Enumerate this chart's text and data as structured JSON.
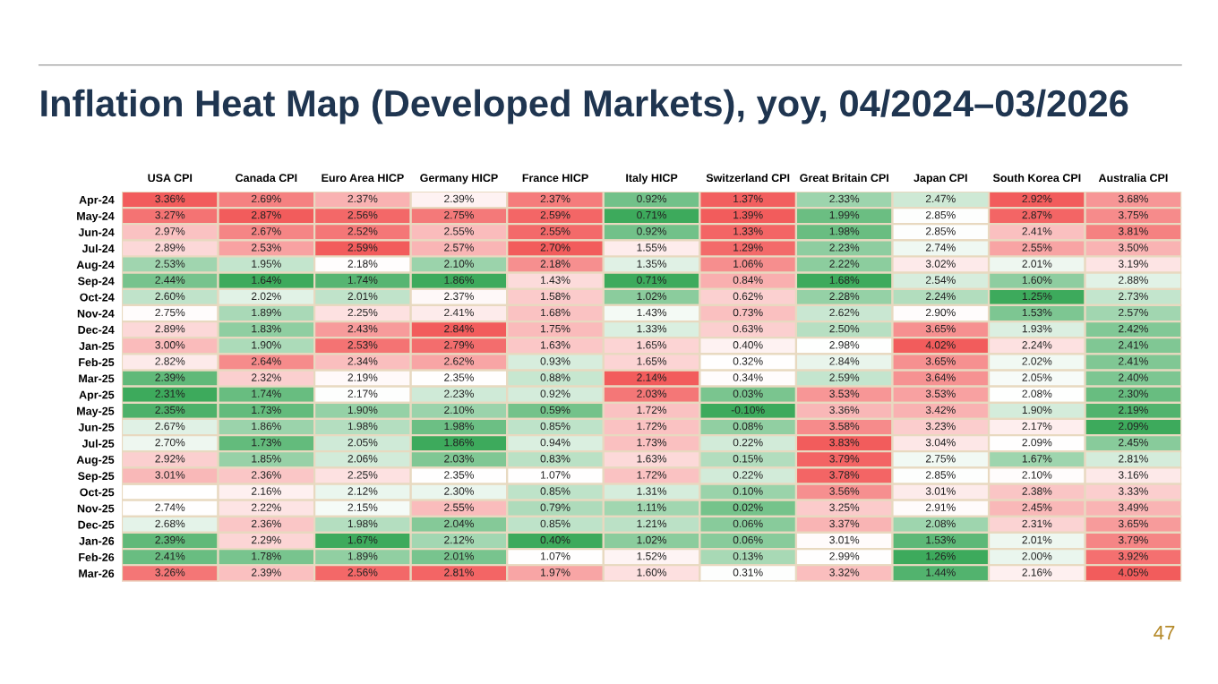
{
  "chart_data": {
    "type": "heatmap",
    "title": "Inflation Heat Map (Developed Markets), yoy, 04/2024–03/2026",
    "categories": [
      "USA CPI",
      "Canada CPI",
      "Euro Area HICP",
      "Germany HICP",
      "France HICP",
      "Italy HICP",
      "Switzerland CPI",
      "Great Britain CPI",
      "Japan CPI",
      "South Korea CPI",
      "Australia CPI"
    ],
    "y_categories": [
      "Apr-24",
      "May-24",
      "Jun-24",
      "Jul-24",
      "Aug-24",
      "Sep-24",
      "Oct-24",
      "Nov-24",
      "Dec-24",
      "Jan-25",
      "Feb-25",
      "Mar-25",
      "Apr-25",
      "May-25",
      "Jun-25",
      "Jul-25",
      "Aug-25",
      "Sep-25",
      "Oct-25",
      "Nov-25",
      "Dec-25",
      "Jan-26",
      "Feb-26",
      "Mar-26"
    ],
    "cells": [
      [
        3.36,
        2.69,
        2.37,
        2.39,
        2.37,
        0.92,
        1.37,
        2.33,
        2.47,
        2.92,
        3.68
      ],
      [
        3.27,
        2.87,
        2.56,
        2.75,
        2.59,
        0.71,
        1.39,
        1.99,
        2.85,
        2.87,
        3.75
      ],
      [
        2.97,
        2.67,
        2.52,
        2.55,
        2.55,
        0.92,
        1.33,
        1.98,
        2.85,
        2.41,
        3.81
      ],
      [
        2.89,
        2.53,
        2.59,
        2.57,
        2.7,
        1.55,
        1.29,
        2.23,
        2.74,
        2.55,
        3.5
      ],
      [
        2.53,
        1.95,
        2.18,
        2.1,
        2.18,
        1.35,
        1.06,
        2.22,
        3.02,
        2.01,
        3.19
      ],
      [
        2.44,
        1.64,
        1.74,
        1.86,
        1.43,
        0.71,
        0.84,
        1.68,
        2.54,
        1.6,
        2.88
      ],
      [
        2.6,
        2.02,
        2.01,
        2.37,
        1.58,
        1.02,
        0.62,
        2.28,
        2.24,
        1.25,
        2.73
      ],
      [
        2.75,
        1.89,
        2.25,
        2.41,
        1.68,
        1.43,
        0.73,
        2.62,
        2.9,
        1.53,
        2.57
      ],
      [
        2.89,
        1.83,
        2.43,
        2.84,
        1.75,
        1.33,
        0.63,
        2.5,
        3.65,
        1.93,
        2.42
      ],
      [
        3.0,
        1.9,
        2.53,
        2.79,
        1.63,
        1.65,
        0.4,
        2.98,
        4.02,
        2.24,
        2.41
      ],
      [
        2.82,
        2.64,
        2.34,
        2.62,
        0.93,
        1.65,
        0.32,
        2.84,
        3.65,
        2.02,
        2.41
      ],
      [
        2.39,
        2.32,
        2.19,
        2.35,
        0.88,
        2.14,
        0.34,
        2.59,
        3.64,
        2.05,
        2.4
      ],
      [
        2.31,
        1.74,
        2.17,
        2.23,
        0.92,
        2.03,
        0.03,
        3.53,
        3.53,
        2.08,
        2.3
      ],
      [
        2.35,
        1.73,
        1.9,
        2.1,
        0.59,
        1.72,
        -0.1,
        3.36,
        3.42,
        1.9,
        2.19
      ],
      [
        2.67,
        1.86,
        1.98,
        1.98,
        0.85,
        1.72,
        0.08,
        3.58,
        3.23,
        2.17,
        2.09
      ],
      [
        2.7,
        1.73,
        2.05,
        1.86,
        0.94,
        1.73,
        0.22,
        3.83,
        3.04,
        2.09,
        2.45
      ],
      [
        2.92,
        1.85,
        2.06,
        2.03,
        0.83,
        1.63,
        0.15,
        3.79,
        2.75,
        1.67,
        2.81
      ],
      [
        3.01,
        2.36,
        2.25,
        2.35,
        1.07,
        1.72,
        0.22,
        3.78,
        2.85,
        2.1,
        3.16
      ],
      [
        null,
        2.16,
        2.12,
        2.3,
        0.85,
        1.31,
        0.1,
        3.56,
        3.01,
        2.38,
        3.33
      ],
      [
        2.74,
        2.22,
        2.15,
        2.55,
        0.79,
        1.11,
        0.02,
        3.25,
        2.91,
        2.45,
        3.49
      ],
      [
        2.68,
        2.36,
        1.98,
        2.04,
        0.85,
        1.21,
        0.06,
        3.37,
        2.08,
        2.31,
        3.65
      ],
      [
        2.39,
        2.29,
        1.67,
        2.12,
        0.4,
        1.02,
        0.06,
        3.01,
        1.53,
        2.01,
        3.79
      ],
      [
        2.41,
        1.78,
        1.89,
        2.01,
        1.07,
        1.52,
        0.13,
        2.99,
        1.26,
        2.0,
        3.92
      ],
      [
        3.26,
        2.39,
        2.56,
        2.81,
        1.97,
        1.6,
        0.31,
        3.32,
        1.44,
        2.16,
        4.05
      ]
    ],
    "cell_labels": [
      [
        "3.36%",
        "2.69%",
        "2.37%",
        "2.39%",
        "2.37%",
        "0.92%",
        "1.37%",
        "2.33%",
        "2.47%",
        "2.92%",
        "3.68%"
      ],
      [
        "3.27%",
        "2.87%",
        "2.56%",
        "2.75%",
        "2.59%",
        "0.71%",
        "1.39%",
        "1.99%",
        "2.85%",
        "2.87%",
        "3.75%"
      ],
      [
        "2.97%",
        "2.67%",
        "2.52%",
        "2.55%",
        "2.55%",
        "0.92%",
        "1.33%",
        "1.98%",
        "2.85%",
        "2.41%",
        "3.81%"
      ],
      [
        "2.89%",
        "2.53%",
        "2.59%",
        "2.57%",
        "2.70%",
        "1.55%",
        "1.29%",
        "2.23%",
        "2.74%",
        "2.55%",
        "3.50%"
      ],
      [
        "2.53%",
        "1.95%",
        "2.18%",
        "2.10%",
        "2.18%",
        "1.35%",
        "1.06%",
        "2.22%",
        "3.02%",
        "2.01%",
        "3.19%"
      ],
      [
        "2.44%",
        "1.64%",
        "1.74%",
        "1.86%",
        "1.43%",
        "0.71%",
        "0.84%",
        "1.68%",
        "2.54%",
        "1.60%",
        "2.88%"
      ],
      [
        "2.60%",
        "2.02%",
        "2.01%",
        "2.37%",
        "1.58%",
        "1.02%",
        "0.62%",
        "2.28%",
        "2.24%",
        "1.25%",
        "2.73%"
      ],
      [
        "2.75%",
        "1.89%",
        "2.25%",
        "2.41%",
        "1.68%",
        "1.43%",
        "0.73%",
        "2.62%",
        "2.90%",
        "1.53%",
        "2.57%"
      ],
      [
        "2.89%",
        "1.83%",
        "2.43%",
        "2.84%",
        "1.75%",
        "1.33%",
        "0.63%",
        "2.50%",
        "3.65%",
        "1.93%",
        "2.42%"
      ],
      [
        "3.00%",
        "1.90%",
        "2.53%",
        "2.79%",
        "1.63%",
        "1.65%",
        "0.40%",
        "2.98%",
        "4.02%",
        "2.24%",
        "2.41%"
      ],
      [
        "2.82%",
        "2.64%",
        "2.34%",
        "2.62%",
        "0.93%",
        "1.65%",
        "0.32%",
        "2.84%",
        "3.65%",
        "2.02%",
        "2.41%"
      ],
      [
        "2.39%",
        "2.32%",
        "2.19%",
        "2.35%",
        "0.88%",
        "2.14%",
        "0.34%",
        "2.59%",
        "3.64%",
        "2.05%",
        "2.40%"
      ],
      [
        "2.31%",
        "1.74%",
        "2.17%",
        "2.23%",
        "0.92%",
        "2.03%",
        "0.03%",
        "3.53%",
        "3.53%",
        "2.08%",
        "2.30%"
      ],
      [
        "2.35%",
        "1.73%",
        "1.90%",
        "2.10%",
        "0.59%",
        "1.72%",
        "-0.10%",
        "3.36%",
        "3.42%",
        "1.90%",
        "2.19%"
      ],
      [
        "2.67%",
        "1.86%",
        "1.98%",
        "1.98%",
        "0.85%",
        "1.72%",
        "0.08%",
        "3.58%",
        "3.23%",
        "2.17%",
        "2.09%"
      ],
      [
        "2.70%",
        "1.73%",
        "2.05%",
        "1.86%",
        "0.94%",
        "1.73%",
        "0.22%",
        "3.83%",
        "3.04%",
        "2.09%",
        "2.45%"
      ],
      [
        "2.92%",
        "1.85%",
        "2.06%",
        "2.03%",
        "0.83%",
        "1.63%",
        "0.15%",
        "3.79%",
        "2.75%",
        "1.67%",
        "2.81%"
      ],
      [
        "3.01%",
        "2.36%",
        "2.25%",
        "2.35%",
        "1.07%",
        "1.72%",
        "0.22%",
        "3.78%",
        "2.85%",
        "2.10%",
        "3.16%"
      ],
      [
        null,
        "2.16%",
        "2.12%",
        "2.30%",
        "0.85%",
        "1.31%",
        "0.10%",
        "3.56%",
        "3.01%",
        "2.38%",
        "3.33%"
      ],
      [
        "2.74%",
        "2.22%",
        "2.15%",
        "2.55%",
        "0.79%",
        "1.11%",
        "0.02%",
        "3.25%",
        "2.91%",
        "2.45%",
        "3.49%"
      ],
      [
        "2.68%",
        "2.36%",
        "1.98%",
        "2.04%",
        "0.85%",
        "1.21%",
        "0.06%",
        "3.37%",
        "2.08%",
        "2.31%",
        "3.65%"
      ],
      [
        "2.39%",
        "2.29%",
        "1.67%",
        "2.12%",
        "0.40%",
        "1.02%",
        "0.06%",
        "3.01%",
        "1.53%",
        "2.01%",
        "3.79%"
      ],
      [
        "2.41%",
        "1.78%",
        "1.89%",
        "2.01%",
        "1.07%",
        "1.52%",
        "0.13%",
        "2.99%",
        "1.26%",
        "2.00%",
        "3.92%"
      ],
      [
        "3.26%",
        "2.39%",
        "2.56%",
        "2.81%",
        "1.97%",
        "1.60%",
        "0.31%",
        "3.32%",
        "1.44%",
        "2.16%",
        "4.05%"
      ]
    ],
    "annotations": [
      "47"
    ]
  }
}
